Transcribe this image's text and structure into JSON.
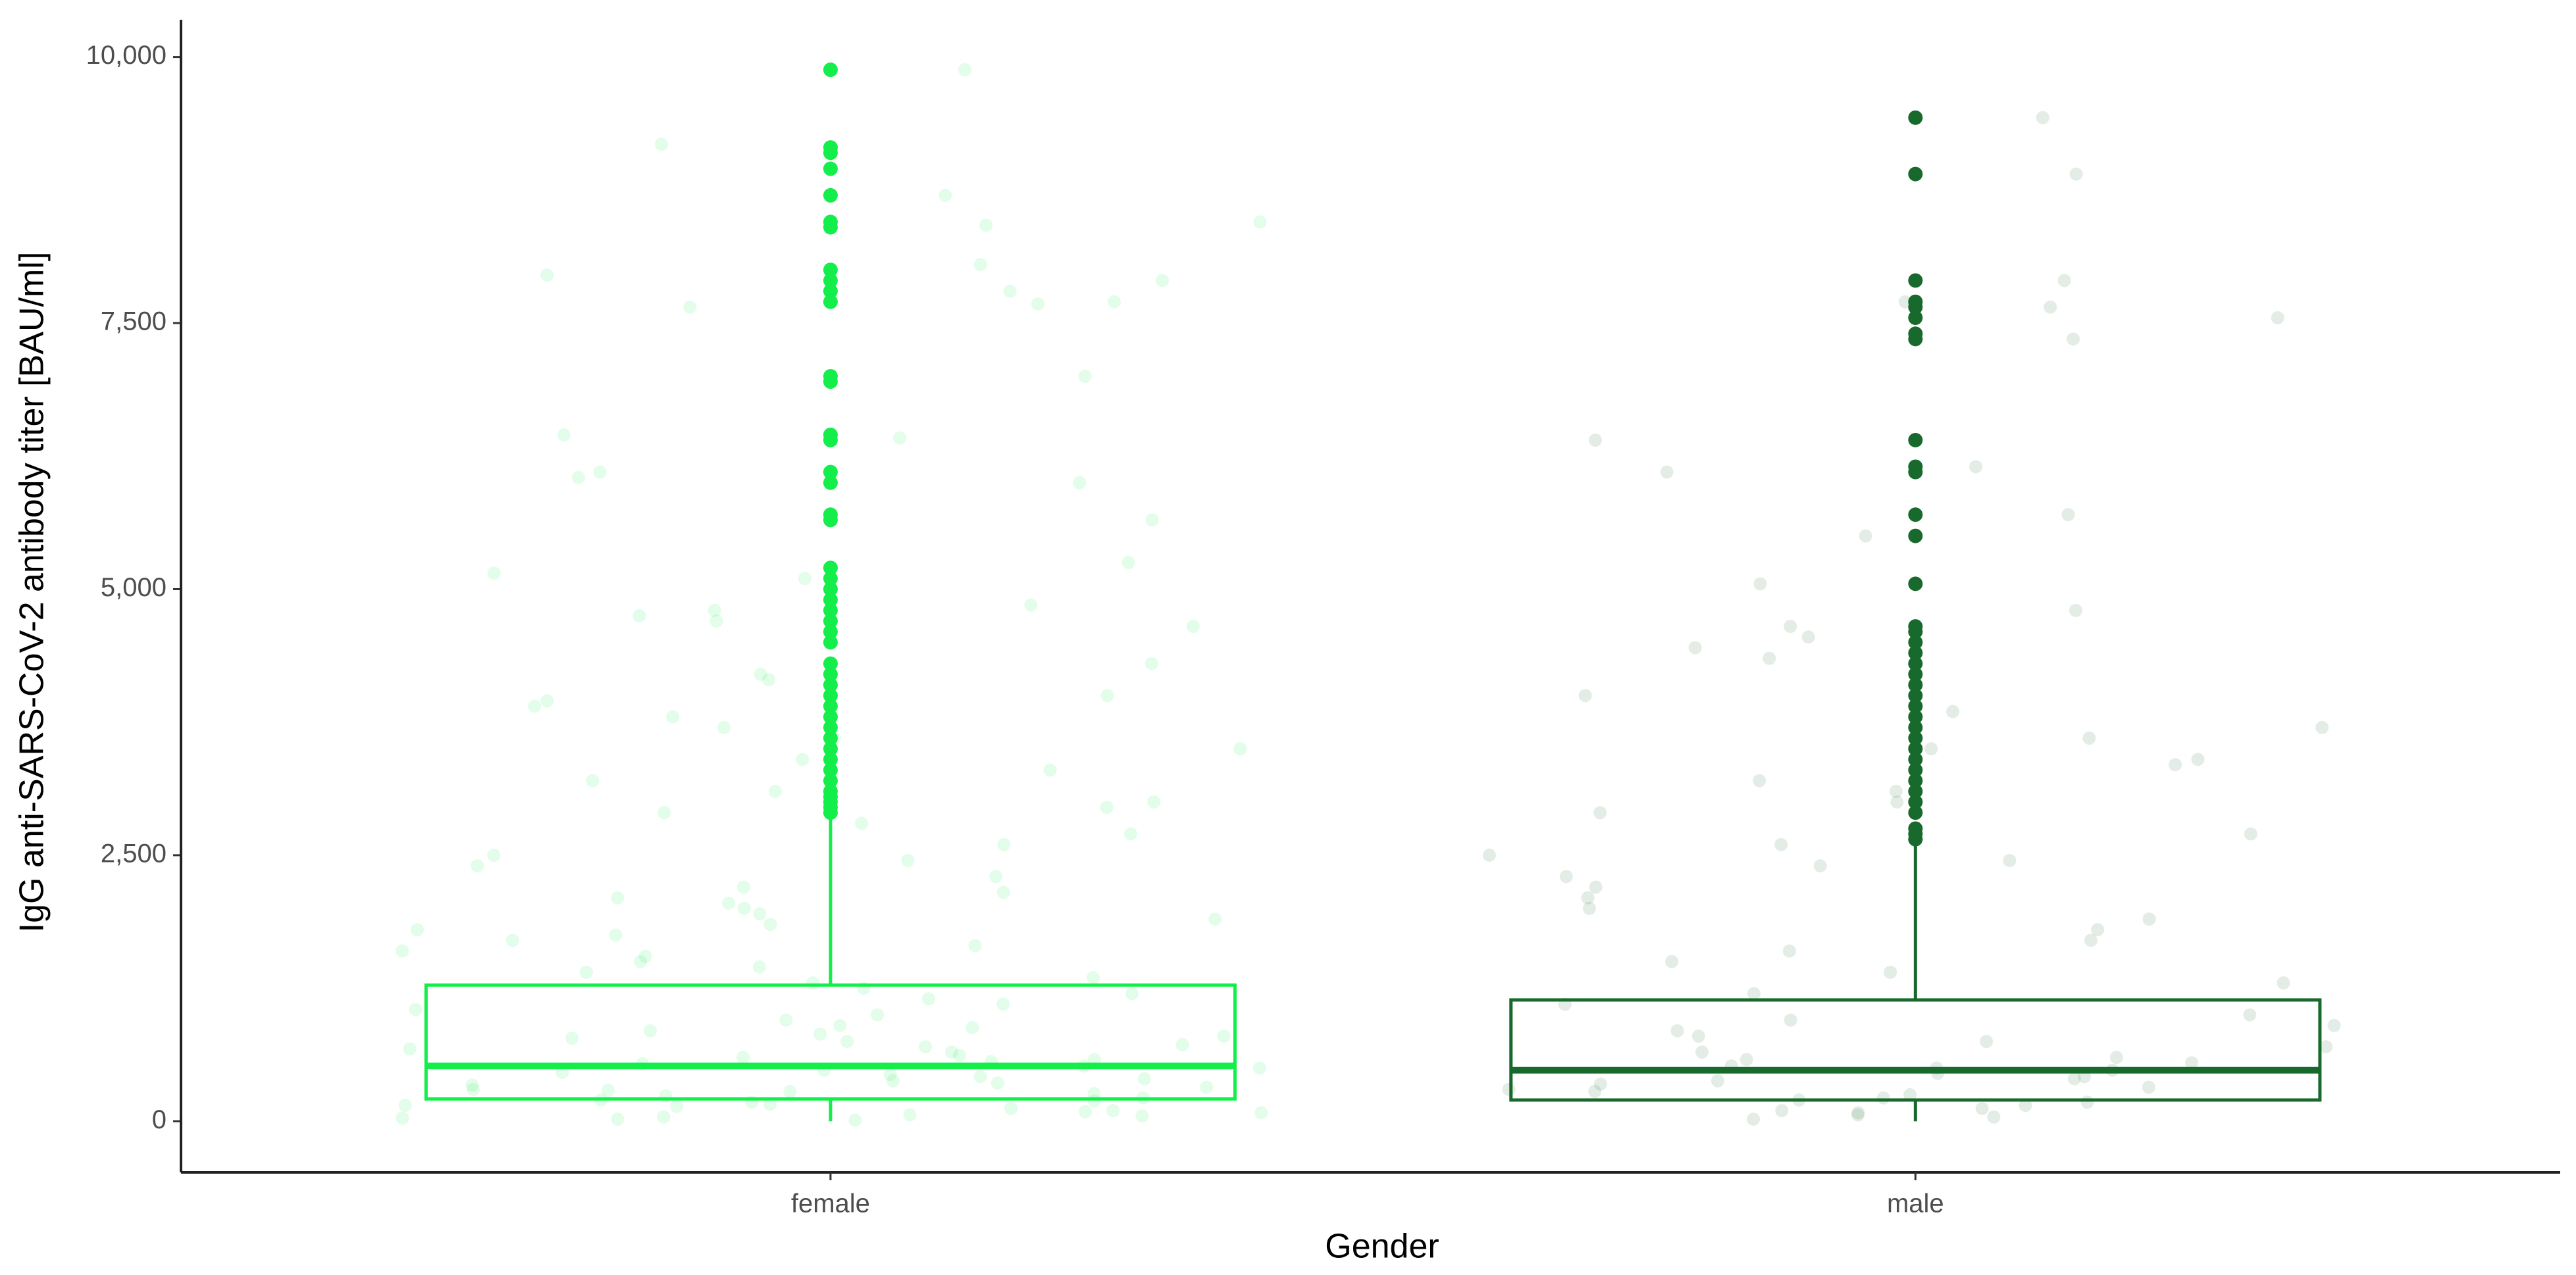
{
  "chart_data": {
    "type": "box",
    "x_label": "Gender",
    "y_label": "IgG anti-SARS-CoV-2 antibody titer [BAU/ml]",
    "categories": [
      "female",
      "male"
    ],
    "ylim": [
      -480,
      10350
    ],
    "yticks": [
      0,
      {
        "value": 2500,
        "label": "2,500"
      },
      {
        "value": 5000,
        "label": "5,000"
      },
      {
        "value": 7500,
        "label": "7,500"
      },
      {
        "value": 10000,
        "label": "10,000"
      }
    ],
    "boxes": [
      {
        "color": "#14ee4a",
        "q1": 210,
        "median": 520,
        "q3": 1280,
        "whisker_low": 0,
        "whisker_high": 2870,
        "outliers": [
          2900,
          2950,
          3000,
          3050,
          3100,
          3200,
          3300,
          3400,
          3500,
          3600,
          3700,
          3800,
          3900,
          4000,
          4100,
          4200,
          4300,
          4500,
          4600,
          4700,
          4800,
          4900,
          5000,
          5100,
          5200,
          5650,
          5700,
          6000,
          6100,
          6400,
          6450,
          6950,
          7000,
          7700,
          7800,
          7900,
          8000,
          8400,
          8450,
          8700,
          8950,
          9100,
          9150,
          9880
        ],
        "points": [
          9880,
          9180,
          8700,
          8450,
          8420,
          8050,
          7950,
          7900,
          7800,
          7700,
          7680,
          7650,
          7000,
          6450,
          6420,
          6100,
          6050,
          6000,
          5650,
          5250,
          5150,
          5100,
          4850,
          4800,
          4750,
          4700,
          4650,
          4300,
          4200,
          4150,
          4000,
          3950,
          3900,
          3800,
          3700,
          3600,
          3500,
          3400,
          3300,
          3200,
          3100,
          3000,
          2950,
          2900,
          2800,
          2700,
          2600,
          2500,
          2450,
          2400,
          2300,
          2200,
          2150,
          2100,
          2050,
          2000,
          1950,
          1900,
          1850,
          1800,
          1750,
          1700,
          1650,
          1600,
          1550,
          1500,
          1450,
          1400,
          1350,
          1300,
          1250,
          1200,
          1150,
          1100,
          1050,
          1000,
          950,
          900,
          880,
          850,
          820,
          800,
          780,
          750,
          720,
          700,
          680,
          650,
          620,
          600,
          580,
          560,
          540,
          520,
          500,
          480,
          460,
          440,
          420,
          400,
          380,
          360,
          340,
          320,
          300,
          290,
          280,
          260,
          240,
          220,
          200,
          190,
          180,
          160,
          150,
          140,
          120,
          100,
          90,
          80,
          60,
          50,
          40,
          30,
          20,
          10
        ]
      },
      {
        "color": "#17692c",
        "q1": 200,
        "median": 480,
        "q3": 1140,
        "whisker_low": 0,
        "whisker_high": 2600,
        "outliers": [
          2650,
          2700,
          2750,
          2900,
          3000,
          3100,
          3200,
          3300,
          3400,
          3500,
          3600,
          3700,
          3800,
          3900,
          4000,
          4100,
          4200,
          4300,
          4400,
          4500,
          4600,
          4650,
          5050,
          5500,
          5700,
          6100,
          6150,
          6400,
          7350,
          7400,
          7550,
          7650,
          7700,
          7900,
          8900,
          9430
        ],
        "points": [
          9430,
          8900,
          7900,
          7700,
          7650,
          7550,
          7350,
          6400,
          6150,
          6100,
          5700,
          5500,
          5050,
          4800,
          4650,
          4550,
          4450,
          4350,
          4000,
          3850,
          3700,
          3600,
          3500,
          3400,
          3350,
          3200,
          3100,
          3000,
          2900,
          2700,
          2600,
          2500,
          2450,
          2400,
          2300,
          2200,
          2100,
          2000,
          1900,
          1800,
          1700,
          1600,
          1500,
          1400,
          1300,
          1200,
          1100,
          1000,
          950,
          900,
          850,
          800,
          750,
          700,
          650,
          600,
          580,
          550,
          520,
          500,
          480,
          450,
          420,
          400,
          380,
          350,
          320,
          300,
          280,
          250,
          220,
          200,
          180,
          150,
          120,
          100,
          80,
          60,
          40,
          20
        ]
      }
    ]
  }
}
